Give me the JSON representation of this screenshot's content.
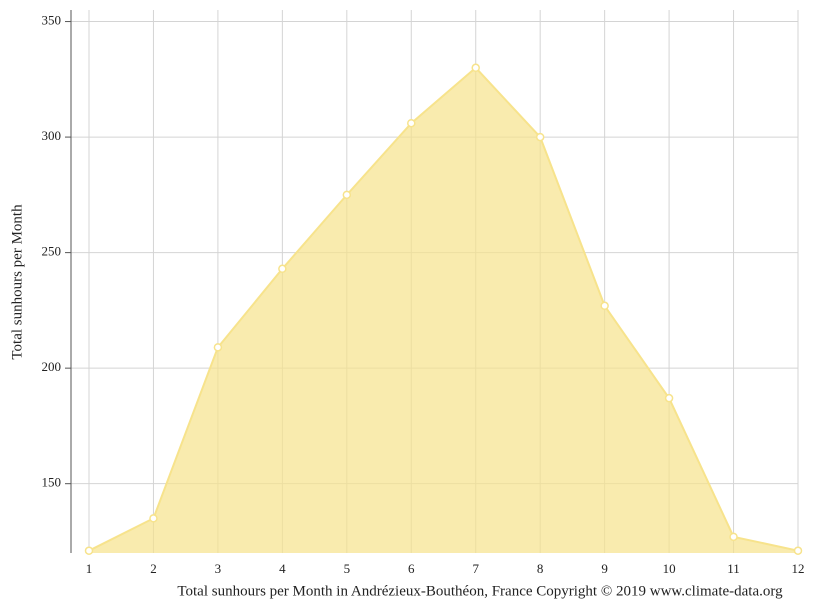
{
  "chart_data": {
    "type": "area",
    "x_label": "Total sunhours per Month in Andrézieux-Bouthéon, France Copyright © 2019 www.climate-data.org",
    "y_label": "Total sunhours per Month",
    "x": [
      1,
      2,
      3,
      4,
      5,
      6,
      7,
      8,
      9,
      10,
      11,
      12
    ],
    "values": [
      121,
      135,
      209,
      243,
      275,
      306,
      330,
      300,
      227,
      187,
      127,
      121
    ],
    "color": "#f7e38c",
    "xlim": [
      1,
      12
    ],
    "xticks": [
      1,
      2,
      3,
      4,
      5,
      6,
      7,
      8,
      9,
      10,
      11,
      12
    ],
    "ylim": [
      120,
      355
    ],
    "yticks": [
      150,
      200,
      250,
      300,
      350
    ],
    "grid": true
  }
}
